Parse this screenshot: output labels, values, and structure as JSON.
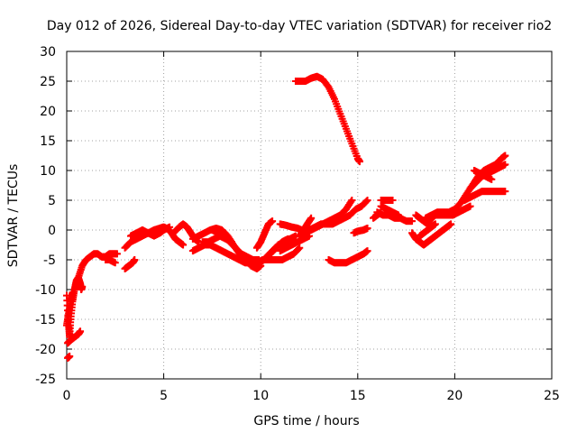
{
  "chart_data": {
    "type": "scatter",
    "title": "Day 012 of 2026, Sidereal Day-to-day VTEC variation (SDTVAR) for receiver rio2",
    "xlabel": "GPS time / hours",
    "ylabel": "SDTVAR / TECUs",
    "xlim": [
      0,
      25
    ],
    "ylim": [
      -25,
      30
    ],
    "xticks": [
      0,
      5,
      10,
      15,
      20,
      25
    ],
    "yticks": [
      -25,
      -20,
      -15,
      -10,
      -5,
      0,
      5,
      10,
      15,
      20,
      25,
      30
    ],
    "grid": true,
    "marker": "plus",
    "color": "#ff0000",
    "segments": [
      {
        "points": [
          [
            0.0,
            -11
          ],
          [
            0.1,
            -16
          ],
          [
            0.15,
            -18
          ],
          [
            0.2,
            -15
          ],
          [
            0.3,
            -12
          ],
          [
            0.4,
            -10
          ],
          [
            0.5,
            -8.5
          ],
          [
            0.6,
            -8
          ],
          [
            0.7,
            -9
          ],
          [
            0.75,
            -10
          ],
          [
            0.8,
            -9.5
          ]
        ]
      },
      {
        "points": [
          [
            0.05,
            -19
          ],
          [
            0.2,
            -18.5
          ],
          [
            0.4,
            -18
          ],
          [
            0.6,
            -17.5
          ],
          [
            0.7,
            -17
          ]
        ]
      },
      {
        "points": [
          [
            0.05,
            -21.5
          ],
          [
            0.15,
            -21.2
          ]
        ]
      },
      {
        "points": [
          [
            0.0,
            -16
          ],
          [
            0.1,
            -14
          ],
          [
            0.2,
            -12
          ],
          [
            0.3,
            -10.5
          ]
        ]
      },
      {
        "points": [
          [
            0.6,
            -8
          ],
          [
            0.8,
            -6
          ],
          [
            1.0,
            -5
          ],
          [
            1.2,
            -4.5
          ],
          [
            1.4,
            -4
          ],
          [
            1.6,
            -4
          ],
          [
            1.8,
            -4.5
          ],
          [
            2.0,
            -4.5
          ],
          [
            2.2,
            -4
          ],
          [
            2.4,
            -4
          ],
          [
            2.6,
            -4
          ]
        ]
      },
      {
        "points": [
          [
            2.0,
            -5
          ],
          [
            2.2,
            -5
          ],
          [
            2.5,
            -5.5
          ]
        ]
      },
      {
        "points": [
          [
            3.0,
            -6.5
          ],
          [
            3.2,
            -6
          ],
          [
            3.4,
            -5.5
          ],
          [
            3.5,
            -5
          ]
        ]
      },
      {
        "points": [
          [
            3.0,
            -3
          ],
          [
            3.3,
            -2
          ],
          [
            3.6,
            -1.5
          ],
          [
            3.9,
            -1
          ],
          [
            4.2,
            -0.5
          ],
          [
            4.5,
            0
          ],
          [
            4.8,
            0.3
          ],
          [
            5.0,
            0.5
          ],
          [
            5.2,
            0.2
          ],
          [
            5.4,
            -0.5
          ],
          [
            5.6,
            -1.5
          ],
          [
            5.8,
            -2
          ],
          [
            6.0,
            -2.5
          ]
        ]
      },
      {
        "points": [
          [
            3.3,
            -1
          ],
          [
            3.6,
            -0.5
          ],
          [
            3.9,
            0
          ],
          [
            4.2,
            -0.5
          ],
          [
            4.5,
            -1
          ],
          [
            4.8,
            -0.5
          ],
          [
            5.0,
            0
          ],
          [
            5.3,
            0.5
          ]
        ]
      },
      {
        "points": [
          [
            5.5,
            -0.5
          ],
          [
            5.8,
            0.5
          ],
          [
            6.0,
            1.0
          ],
          [
            6.2,
            0.5
          ],
          [
            6.4,
            -0.5
          ],
          [
            6.6,
            -1.5
          ],
          [
            6.8,
            -2
          ]
        ]
      },
      {
        "points": [
          [
            6.5,
            -3.5
          ],
          [
            6.8,
            -3
          ],
          [
            7.1,
            -2.5
          ],
          [
            7.4,
            -2.5
          ],
          [
            7.7,
            -3
          ],
          [
            8.0,
            -3.5
          ],
          [
            8.3,
            -4
          ],
          [
            8.6,
            -4.5
          ],
          [
            8.9,
            -5
          ],
          [
            9.2,
            -5.5
          ],
          [
            9.5,
            -5.5
          ],
          [
            9.8,
            -5.5
          ],
          [
            10.1,
            -5
          ],
          [
            10.4,
            -5
          ]
        ]
      },
      {
        "points": [
          [
            6.5,
            -1.5
          ],
          [
            6.8,
            -1
          ],
          [
            7.1,
            -0.5
          ],
          [
            7.4,
            0
          ],
          [
            7.7,
            0.3
          ],
          [
            8.0,
            0
          ],
          [
            8.3,
            -1
          ],
          [
            8.6,
            -2.5
          ],
          [
            8.9,
            -4
          ],
          [
            9.2,
            -5
          ],
          [
            9.5,
            -6
          ],
          [
            9.8,
            -6.5
          ],
          [
            10.0,
            -6
          ]
        ]
      },
      {
        "points": [
          [
            7.0,
            -2
          ],
          [
            7.3,
            -2
          ],
          [
            7.6,
            -1.5
          ],
          [
            7.9,
            -1
          ],
          [
            8.2,
            -1.5
          ],
          [
            8.5,
            -2
          ]
        ]
      },
      {
        "points": [
          [
            7.5,
            0
          ],
          [
            7.8,
            -0.5
          ],
          [
            8.1,
            -1
          ],
          [
            8.4,
            -2
          ],
          [
            8.7,
            -3
          ],
          [
            9.0,
            -4
          ],
          [
            9.3,
            -4.5
          ],
          [
            9.6,
            -5
          ],
          [
            9.9,
            -5
          ]
        ]
      },
      {
        "points": [
          [
            9.8,
            -3
          ],
          [
            10.0,
            -2
          ],
          [
            10.2,
            -0.5
          ],
          [
            10.4,
            1
          ],
          [
            10.6,
            1.5
          ]
        ]
      },
      {
        "points": [
          [
            10.2,
            -5
          ],
          [
            10.5,
            -5
          ],
          [
            10.8,
            -5
          ],
          [
            11.1,
            -5
          ],
          [
            11.4,
            -4.5
          ],
          [
            11.7,
            -4
          ],
          [
            12.0,
            -3
          ]
        ]
      },
      {
        "points": [
          [
            10.0,
            -5.5
          ],
          [
            10.3,
            -4.5
          ],
          [
            10.6,
            -3.5
          ],
          [
            10.9,
            -2.5
          ],
          [
            11.2,
            -2
          ],
          [
            11.5,
            -1.5
          ],
          [
            11.8,
            -1
          ]
        ]
      },
      {
        "points": [
          [
            10.5,
            -4
          ],
          [
            10.8,
            -3
          ],
          [
            11.1,
            -2
          ],
          [
            11.4,
            -1.5
          ]
        ]
      },
      {
        "points": [
          [
            11.0,
            -3.5
          ],
          [
            11.3,
            -3
          ],
          [
            11.6,
            -2.5
          ],
          [
            11.9,
            -2
          ],
          [
            12.2,
            -1.5
          ],
          [
            12.5,
            -1
          ]
        ]
      },
      {
        "points": [
          [
            11.0,
            1
          ],
          [
            11.3,
            0.8
          ],
          [
            11.6,
            0.5
          ],
          [
            11.9,
            0.3
          ],
          [
            12.1,
            0
          ]
        ]
      },
      {
        "points": [
          [
            11.8,
            25
          ],
          [
            12.0,
            25
          ],
          [
            12.3,
            25
          ],
          [
            12.6,
            25.5
          ],
          [
            12.9,
            25.8
          ],
          [
            13.2,
            25.3
          ],
          [
            13.5,
            24
          ],
          [
            13.8,
            22
          ],
          [
            14.1,
            19.5
          ],
          [
            14.4,
            17
          ],
          [
            14.7,
            14.5
          ],
          [
            15.0,
            12
          ],
          [
            15.1,
            11.5
          ]
        ]
      },
      {
        "points": [
          [
            12.0,
            -1
          ],
          [
            12.3,
            -0.5
          ],
          [
            12.6,
            0
          ],
          [
            12.9,
            0.5
          ],
          [
            13.2,
            1
          ],
          [
            13.5,
            1.5
          ],
          [
            13.8,
            2
          ],
          [
            14.1,
            2.5
          ],
          [
            14.4,
            3.5
          ],
          [
            14.7,
            5
          ]
        ]
      },
      {
        "points": [
          [
            12.5,
            0
          ],
          [
            12.8,
            0.5
          ],
          [
            13.1,
            1
          ],
          [
            13.4,
            1
          ],
          [
            13.7,
            1
          ],
          [
            14.0,
            1.5
          ],
          [
            14.3,
            2
          ],
          [
            14.6,
            2.5
          ],
          [
            14.9,
            3.5
          ],
          [
            15.2,
            4
          ],
          [
            15.5,
            5
          ]
        ]
      },
      {
        "points": [
          [
            12.0,
            -1
          ],
          [
            12.2,
            0
          ],
          [
            12.4,
            1
          ],
          [
            12.6,
            2
          ]
        ]
      },
      {
        "points": [
          [
            13.5,
            -5
          ],
          [
            13.8,
            -5.5
          ],
          [
            14.1,
            -5.5
          ],
          [
            14.4,
            -5.5
          ],
          [
            14.7,
            -5
          ],
          [
            15.0,
            -4.5
          ],
          [
            15.3,
            -4
          ],
          [
            15.5,
            -3.5
          ]
        ]
      },
      {
        "points": [
          [
            14.8,
            -0.5
          ],
          [
            15.0,
            -0.2
          ],
          [
            15.3,
            0
          ],
          [
            15.5,
            0.3
          ]
        ]
      },
      {
        "points": [
          [
            15.8,
            2
          ],
          [
            16.0,
            2.5
          ],
          [
            16.2,
            3
          ]
        ]
      },
      {
        "points": [
          [
            16.2,
            5
          ],
          [
            16.4,
            5
          ],
          [
            16.6,
            5
          ],
          [
            16.8,
            5
          ]
        ]
      },
      {
        "points": [
          [
            16.0,
            3
          ],
          [
            16.3,
            2.5
          ],
          [
            16.6,
            2.5
          ],
          [
            16.9,
            2
          ],
          [
            17.2,
            2
          ],
          [
            17.5,
            1.5
          ],
          [
            17.8,
            1.5
          ]
        ]
      },
      {
        "points": [
          [
            16.2,
            4
          ],
          [
            16.5,
            3.5
          ],
          [
            16.8,
            3
          ],
          [
            17.1,
            2.5
          ]
        ]
      },
      {
        "points": [
          [
            17.8,
            -0.5
          ],
          [
            18.0,
            -1.5
          ],
          [
            18.2,
            -2
          ],
          [
            18.4,
            -2.5
          ],
          [
            18.6,
            -2
          ],
          [
            18.8,
            -1.5
          ],
          [
            19.0,
            -1
          ],
          [
            19.2,
            -0.5
          ],
          [
            19.4,
            0
          ],
          [
            19.6,
            0.5
          ],
          [
            19.8,
            1
          ]
        ]
      },
      {
        "points": [
          [
            18.0,
            2.5
          ],
          [
            18.2,
            2
          ],
          [
            18.4,
            1.5
          ],
          [
            18.6,
            1
          ],
          [
            18.8,
            2
          ],
          [
            19.0,
            2.5
          ],
          [
            19.3,
            2.5
          ],
          [
            19.6,
            2.5
          ],
          [
            19.9,
            2.5
          ],
          [
            20.2,
            3
          ],
          [
            20.5,
            3.5
          ],
          [
            20.8,
            4
          ]
        ]
      },
      {
        "points": [
          [
            18.2,
            -1
          ],
          [
            18.4,
            -0.5
          ],
          [
            18.6,
            0
          ],
          [
            18.8,
            0.5
          ],
          [
            19.0,
            1
          ]
        ]
      },
      {
        "points": [
          [
            18.5,
            2
          ],
          [
            18.8,
            2.5
          ],
          [
            19.1,
            3
          ],
          [
            19.4,
            3
          ],
          [
            19.7,
            3
          ],
          [
            20.0,
            3.5
          ],
          [
            20.3,
            4.5
          ],
          [
            20.6,
            6
          ],
          [
            20.9,
            7.5
          ],
          [
            21.2,
            9
          ],
          [
            21.5,
            10
          ],
          [
            21.8,
            10.5
          ],
          [
            22.1,
            11
          ],
          [
            22.4,
            12
          ],
          [
            22.6,
            12.5
          ]
        ]
      },
      {
        "points": [
          [
            20.5,
            5
          ],
          [
            20.8,
            5.5
          ],
          [
            21.1,
            6
          ],
          [
            21.4,
            6.5
          ],
          [
            21.7,
            6.5
          ],
          [
            22.0,
            6.5
          ],
          [
            22.3,
            6.5
          ],
          [
            22.6,
            6.5
          ]
        ]
      },
      {
        "points": [
          [
            20.8,
            7
          ],
          [
            21.1,
            8
          ],
          [
            21.4,
            9
          ],
          [
            21.7,
            9.5
          ],
          [
            22.0,
            10
          ],
          [
            22.3,
            10.5
          ],
          [
            22.6,
            11
          ]
        ]
      },
      {
        "points": [
          [
            21.0,
            10
          ],
          [
            21.3,
            9.5
          ],
          [
            21.6,
            9
          ],
          [
            21.9,
            8.5
          ]
        ]
      }
    ]
  }
}
